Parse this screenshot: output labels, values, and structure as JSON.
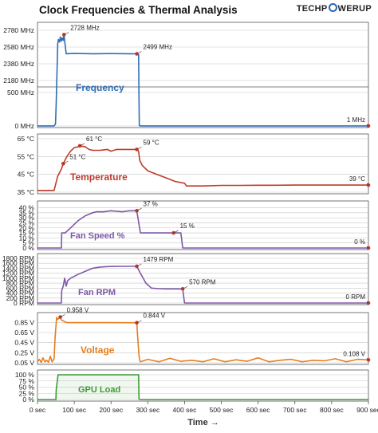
{
  "header": {
    "title": "Clock Frequencies & Thermal Analysis",
    "logo_left": "TECHP",
    "logo_right": "WERUP"
  },
  "colors": {
    "frequency": "#2f6db5",
    "temperature": "#c0392b",
    "fan_speed": "#7e57a8",
    "fan_rpm": "#7e57a8",
    "voltage": "#e57e1f",
    "gpu_load": "#3f9a36",
    "marker": "#c0392b",
    "grid": "#c8c8c8",
    "axis": "#555555",
    "brand": "#2a66b8"
  },
  "chart_data": [
    {
      "type": "line",
      "title": "Frequency",
      "ylabel": "",
      "tick_labels": [
        "2780 MHz",
        "2580 MHz",
        "2380 MHz",
        "2180 MHz",
        "500 MHz",
        "0 MHz"
      ],
      "broken_axis": {
        "upper_range": [
          2180,
          2780
        ],
        "lower_range": [
          0,
          500
        ]
      },
      "series": [
        {
          "x": [
            0,
            45,
            49,
            51,
            55,
            57,
            60,
            62,
            65,
            67,
            70,
            72,
            78,
            100,
            150,
            200,
            250,
            270,
            275,
            276,
            277,
            280,
            300,
            400,
            500,
            600,
            700,
            800,
            900
          ],
          "y": [
            1,
            1,
            30,
            350,
            2620,
            2670,
            2640,
            2700,
            2650,
            2690,
            2660,
            2728,
            2500,
            2505,
            2500,
            2502,
            2500,
            2499,
            2490,
            400,
            5,
            1,
            1,
            1,
            1,
            1,
            1,
            1,
            1
          ]
        }
      ],
      "annotations": [
        {
          "x": 72,
          "y": 2728,
          "label": "2728 MHz"
        },
        {
          "x": 270,
          "y": 2499,
          "label": "2499 MHz"
        },
        {
          "x": 900,
          "y": 1,
          "label": "1 MHz"
        }
      ]
    },
    {
      "type": "line",
      "title": "Temperature",
      "ylabel": "",
      "tick_labels": [
        "65 °C",
        "55 °C",
        "45 °C",
        "35 °C"
      ],
      "ylim": [
        35,
        65
      ],
      "series": [
        {
          "x": [
            0,
            45,
            50,
            55,
            65,
            70,
            80,
            90,
            100,
            110,
            115,
            130,
            140,
            150,
            170,
            190,
            200,
            215,
            230,
            250,
            270,
            275,
            278,
            285,
            300,
            325,
            350,
            375,
            400,
            405,
            420,
            450,
            500,
            550,
            600,
            650,
            700,
            750,
            800,
            850,
            900
          ],
          "y": [
            36,
            36,
            40,
            44,
            48,
            51,
            55,
            58,
            60,
            60.5,
            61,
            60.5,
            59,
            58.5,
            58.5,
            59,
            58,
            59,
            59,
            59,
            59,
            58,
            53,
            50,
            47,
            45,
            43,
            41,
            40,
            38.5,
            38.5,
            38.5,
            38.8,
            38.8,
            38.9,
            38.9,
            39,
            39,
            39,
            39,
            39
          ]
        }
      ],
      "annotations": [
        {
          "x": 70,
          "y": 51,
          "label": "51 °C"
        },
        {
          "x": 115,
          "y": 61,
          "label": "61 °C"
        },
        {
          "x": 270,
          "y": 59,
          "label": "59 °C"
        },
        {
          "x": 900,
          "y": 39,
          "label": "39 °C"
        }
      ]
    },
    {
      "type": "line",
      "title": "Fan Speed %",
      "ylabel": "",
      "tick_labels": [
        "40 %",
        "35 %",
        "30 %",
        "25 %",
        "20 %",
        "15 %",
        "10 %",
        "5 %",
        "0 %"
      ],
      "ylim": [
        0,
        42
      ],
      "series": [
        {
          "x": [
            0,
            65,
            66,
            75,
            90,
            110,
            130,
            150,
            160,
            180,
            200,
            230,
            250,
            260,
            270,
            280,
            290,
            300,
            320,
            350,
            390,
            395,
            400,
            450,
            500,
            600,
            700,
            800,
            900
          ],
          "y": [
            0,
            0,
            15,
            15,
            20,
            27,
            32,
            35,
            36,
            36,
            37,
            36,
            37,
            37,
            37,
            15,
            15,
            15,
            15,
            15,
            15,
            0,
            0,
            0,
            0,
            0,
            0,
            0,
            0
          ]
        }
      ],
      "annotations": [
        {
          "x": 270,
          "y": 37,
          "label": "37 %"
        },
        {
          "x": 370,
          "y": 15,
          "label": "15 %"
        },
        {
          "x": 900,
          "y": 0,
          "label": "0 %"
        }
      ]
    },
    {
      "type": "line",
      "title": "Fan RPM",
      "ylabel": "",
      "tick_labels": [
        "1800 RPM",
        "1600 RPM",
        "1400 RPM",
        "1200 RPM",
        "1000 RPM",
        "800 RPM",
        "600 RPM",
        "400 RPM",
        "200 RPM",
        "0 RPM"
      ],
      "ylim": [
        0,
        1800
      ],
      "series": [
        {
          "x": [
            0,
            65,
            66,
            70,
            74,
            78,
            82,
            90,
            110,
            130,
            150,
            170,
            190,
            210,
            230,
            250,
            270,
            280,
            295,
            310,
            330,
            350,
            380,
            395,
            400,
            450,
            500,
            600,
            700,
            800,
            900
          ],
          "y": [
            0,
            0,
            500,
            680,
            1000,
            680,
            900,
            1000,
            1150,
            1280,
            1400,
            1450,
            1470,
            1475,
            1480,
            1479,
            1479,
            1200,
            800,
            600,
            580,
            570,
            570,
            570,
            0,
            0,
            0,
            0,
            0,
            0,
            0
          ]
        }
      ],
      "annotations": [
        {
          "x": 270,
          "y": 1479,
          "label": "1479 RPM"
        },
        {
          "x": 395,
          "y": 570,
          "label": "570 RPM"
        },
        {
          "x": 900,
          "y": 0,
          "label": "0 RPM"
        }
      ]
    },
    {
      "type": "line",
      "title": "Voltage",
      "ylabel": "",
      "tick_labels": [
        "0.85 V",
        "0.65 V",
        "0.45 V",
        "0.25 V",
        "0.05 V"
      ],
      "ylim": [
        0.05,
        0.95
      ],
      "series": [
        {
          "x": [
            0,
            5,
            10,
            15,
            20,
            25,
            30,
            35,
            40,
            45,
            48,
            52,
            55,
            58,
            62,
            65,
            70,
            75,
            80,
            100,
            150,
            200,
            250,
            270,
            273,
            276,
            278,
            280,
            300,
            330,
            360,
            390,
            420,
            450,
            480,
            510,
            540,
            570,
            600,
            630,
            660,
            690,
            720,
            750,
            780,
            810,
            840,
            870,
            900
          ],
          "y": [
            0.07,
            0.12,
            0.06,
            0.15,
            0.07,
            0.1,
            0.06,
            0.18,
            0.07,
            0.13,
            0.55,
            0.95,
            0.91,
            0.93,
            0.958,
            0.9,
            0.88,
            0.86,
            0.845,
            0.845,
            0.845,
            0.845,
            0.844,
            0.844,
            0.5,
            0.2,
            0.1,
            0.07,
            0.12,
            0.07,
            0.14,
            0.08,
            0.1,
            0.07,
            0.13,
            0.07,
            0.11,
            0.08,
            0.15,
            0.07,
            0.1,
            0.12,
            0.07,
            0.1,
            0.09,
            0.13,
            0.07,
            0.12,
            0.108
          ]
        }
      ],
      "annotations": [
        {
          "x": 62,
          "y": 0.958,
          "label": "0.958 V"
        },
        {
          "x": 270,
          "y": 0.844,
          "label": "0.844 V"
        },
        {
          "x": 900,
          "y": 0.108,
          "label": "0.108 V"
        }
      ]
    },
    {
      "type": "area",
      "title": "GPU Load",
      "ylabel": "",
      "tick_labels": [
        "100 %",
        "75 %",
        "50 %",
        "25 %",
        "0 %"
      ],
      "ylim": [
        0,
        100
      ],
      "series": [
        {
          "x": [
            0,
            50,
            51,
            56,
            270,
            275,
            276,
            280,
            400,
            500,
            600,
            700,
            800,
            900
          ],
          "y": [
            0,
            0,
            40,
            100,
            100,
            100,
            2,
            0,
            0,
            0,
            0,
            0,
            0,
            0
          ]
        }
      ]
    }
  ],
  "x_axis": {
    "label": "Time →",
    "ticks": [
      "0 sec",
      "100 sec",
      "200 sec",
      "300 sec",
      "400 sec",
      "500 sec",
      "600 sec",
      "700 sec",
      "800 sec",
      "900 sec"
    ],
    "xlim": [
      0,
      900
    ]
  }
}
